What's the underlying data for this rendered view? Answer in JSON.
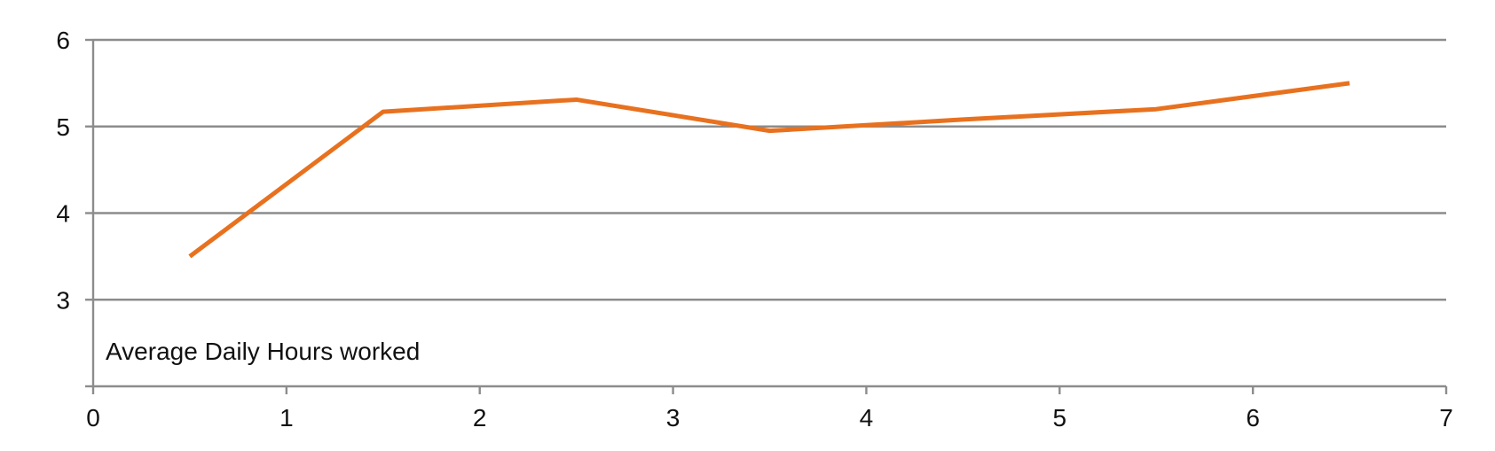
{
  "chart_data": {
    "type": "line",
    "x": [
      0.5,
      1.5,
      2.5,
      3.5,
      4.5,
      5.5,
      6.5
    ],
    "series": [
      {
        "values": [
          3.5,
          5.17,
          5.31,
          4.95,
          5.08,
          5.2,
          5.5
        ],
        "color": "#e8711f"
      }
    ],
    "xlim": [
      0,
      7
    ],
    "ylim": [
      2,
      6
    ],
    "xticks": [
      "0",
      "1",
      "2",
      "3",
      "4",
      "5",
      "6",
      "7"
    ],
    "yticks": [
      "3",
      "4",
      "5",
      "6"
    ],
    "grid": true,
    "title": "",
    "xlabel": "",
    "ylabel": "",
    "annotation": "Average Daily Hours worked"
  }
}
